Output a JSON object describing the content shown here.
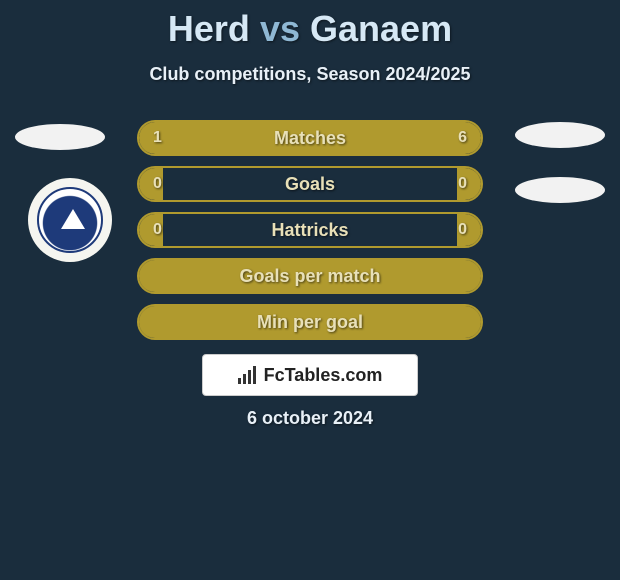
{
  "title": {
    "player1": "Herd",
    "vs": "vs",
    "player2": "Ganaem"
  },
  "subtitle": "Club competitions, Season 2024/2025",
  "stats": {
    "rows": [
      {
        "label": "Matches",
        "left_val": "1",
        "right_val": "6",
        "left_pct": 14,
        "right_pct": 86,
        "show_vals": true
      },
      {
        "label": "Goals",
        "left_val": "0",
        "right_val": "0",
        "left_pct": 7,
        "right_pct": 7,
        "show_vals": true
      },
      {
        "label": "Hattricks",
        "left_val": "0",
        "right_val": "0",
        "left_pct": 7,
        "right_pct": 7,
        "show_vals": true
      },
      {
        "label": "Goals per match",
        "left_val": "",
        "right_val": "",
        "left_pct": 100,
        "right_pct": 0,
        "show_vals": false,
        "full": true
      },
      {
        "label": "Min per goal",
        "left_val": "",
        "right_val": "",
        "left_pct": 100,
        "right_pct": 0,
        "show_vals": false,
        "full": true
      }
    ]
  },
  "brand": "FcTables.com",
  "date": "6 october 2024",
  "colors": {
    "background": "#1a2d3d",
    "accent": "#b09a2e",
    "text_light": "#e8e0b8",
    "title_light": "#d6e8f5",
    "title_mid": "#8fb8d4"
  }
}
